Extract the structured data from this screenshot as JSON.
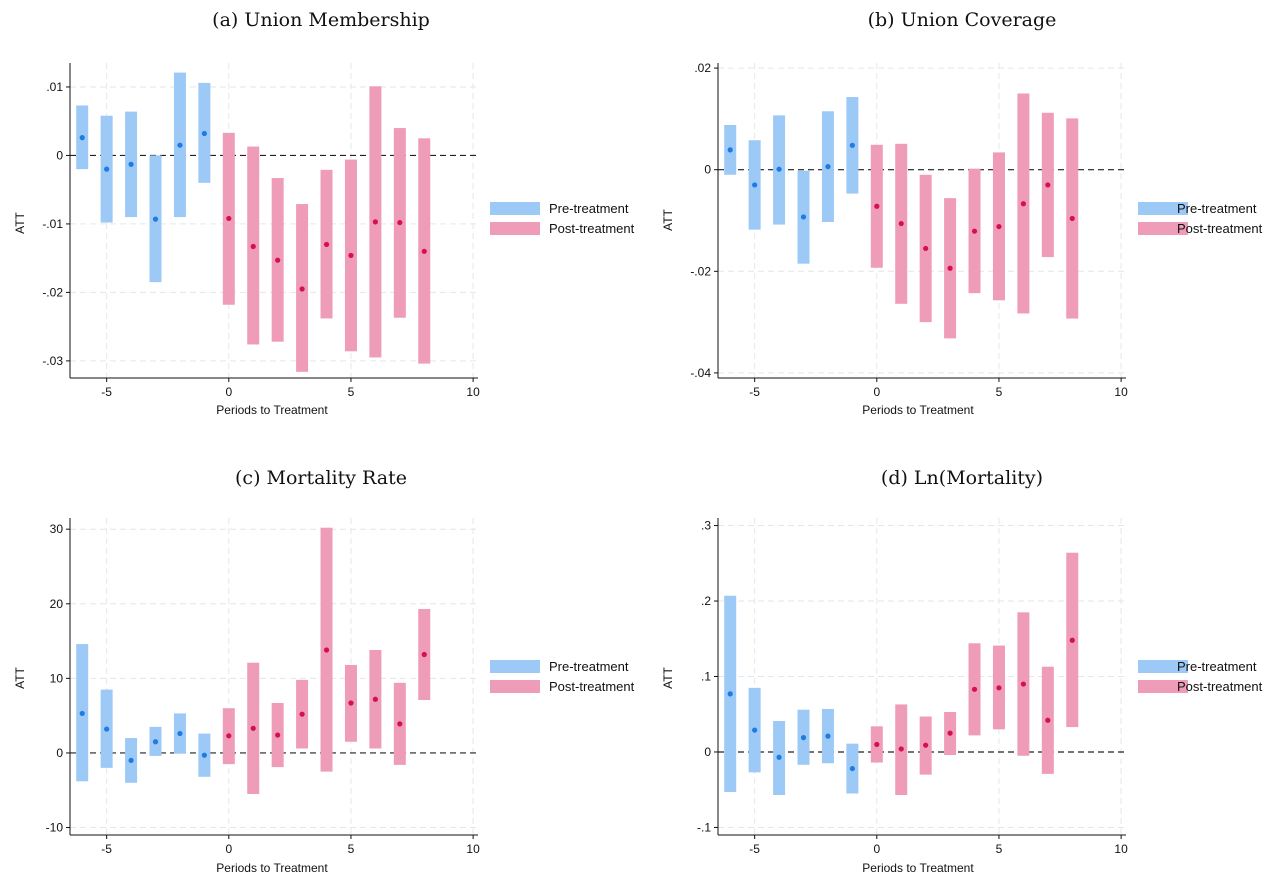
{
  "colors": {
    "pre": "#9dc9f7",
    "pre_point": "#1e7be0",
    "post": "#ee9cb8",
    "post_point": "#d4114e",
    "grid": "#e6e6e6",
    "axis": "#111111"
  },
  "chart_data": [
    {
      "type": "errorbar",
      "title": "(a) Union Membership",
      "xlabel": "Periods to Treatment",
      "ylabel": "ATT",
      "xlim": [
        -6.5,
        10.2
      ],
      "ylim": [
        -0.0325,
        0.0135
      ],
      "xticks": [
        -5,
        0,
        5,
        10
      ],
      "xtick_labels": [
        "-5",
        "0",
        "5",
        "10"
      ],
      "yticks": [
        0.01,
        0,
        -0.01,
        -0.02,
        -0.03
      ],
      "ytick_labels": [
        ".01",
        "0",
        "-.01",
        "-.02",
        "-.03"
      ],
      "legend": {
        "position": "right",
        "labels": [
          "Pre-treatment",
          "Post-treatment"
        ]
      },
      "series": [
        {
          "name": "Pre-treatment",
          "x": [
            -6,
            -5,
            -4,
            -3,
            -2,
            -1
          ],
          "y": [
            0.0026,
            -0.002,
            -0.0013,
            -0.0093,
            0.0015,
            0.0032
          ],
          "lower": [
            -0.002,
            -0.0098,
            -0.009,
            -0.0185,
            -0.009,
            -0.004
          ],
          "upper": [
            0.0073,
            0.0058,
            0.0064,
            0.0,
            0.0121,
            0.0106
          ]
        },
        {
          "name": "Post-treatment",
          "x": [
            0,
            1,
            2,
            3,
            4,
            5,
            6,
            7,
            8
          ],
          "y": [
            -0.0092,
            -0.0133,
            -0.0153,
            -0.0195,
            -0.013,
            -0.0146,
            -0.0097,
            -0.0098,
            -0.014
          ],
          "lower": [
            -0.0218,
            -0.0276,
            -0.0272,
            -0.0316,
            -0.0238,
            -0.0286,
            -0.0295,
            -0.0237,
            -0.0304
          ],
          "upper": [
            0.0033,
            0.0013,
            -0.0033,
            -0.0071,
            -0.0021,
            -0.0006,
            0.0101,
            0.004,
            0.0025
          ]
        }
      ]
    },
    {
      "type": "errorbar",
      "title": "(b) Union Coverage",
      "xlabel": "Periods to Treatment",
      "ylabel": "ATT",
      "xlim": [
        -6.5,
        10.2
      ],
      "ylim": [
        -0.041,
        0.021
      ],
      "xticks": [
        -5,
        0,
        5,
        10
      ],
      "xtick_labels": [
        "-5",
        "0",
        "5",
        "10"
      ],
      "yticks": [
        0.02,
        0,
        -0.02,
        -0.04
      ],
      "ytick_labels": [
        ".02",
        "0",
        "-.02",
        "-.04"
      ],
      "legend": {
        "position": "right",
        "labels": [
          "Pre-treatment",
          "Post-treatment"
        ]
      },
      "series": [
        {
          "name": "Pre-treatment",
          "x": [
            -6,
            -5,
            -4,
            -3,
            -2,
            -1
          ],
          "y": [
            0.0039,
            -0.003,
            0.0001,
            -0.0093,
            0.0006,
            0.0048
          ],
          "lower": [
            -0.001,
            -0.0118,
            -0.0108,
            -0.0185,
            -0.0103,
            -0.0047
          ],
          "upper": [
            0.0088,
            0.0058,
            0.0107,
            -0.0002,
            0.0115,
            0.0143
          ]
        },
        {
          "name": "Post-treatment",
          "x": [
            0,
            1,
            2,
            3,
            4,
            5,
            6,
            7,
            8
          ],
          "y": [
            -0.0072,
            -0.0106,
            -0.0155,
            -0.0194,
            -0.0121,
            -0.0112,
            -0.0067,
            -0.003,
            -0.0096
          ],
          "lower": [
            -0.0193,
            -0.0264,
            -0.03,
            -0.0332,
            -0.0243,
            -0.0257,
            -0.0283,
            -0.0172,
            -0.0293
          ],
          "upper": [
            0.0049,
            0.0051,
            -0.001,
            -0.0056,
            0.0002,
            0.0034,
            0.015,
            0.0112,
            0.0101
          ]
        }
      ]
    },
    {
      "type": "errorbar",
      "title": "(c) Mortality Rate",
      "xlabel": "Periods to Treatment",
      "ylabel": "ATT",
      "xlim": [
        -6.5,
        10.2
      ],
      "ylim": [
        -11,
        31.5
      ],
      "xticks": [
        -5,
        0,
        5,
        10
      ],
      "xtick_labels": [
        "-5",
        "0",
        "5",
        "10"
      ],
      "yticks": [
        30,
        20,
        10,
        0,
        -10
      ],
      "ytick_labels": [
        "30",
        "20",
        "10",
        "0",
        "-10"
      ],
      "legend": {
        "position": "right",
        "labels": [
          "Pre-treatment",
          "Post-treatment"
        ]
      },
      "series": [
        {
          "name": "Pre-treatment",
          "x": [
            -6,
            -5,
            -4,
            -3,
            -2,
            -1
          ],
          "y": [
            5.3,
            3.2,
            -1.0,
            1.5,
            2.6,
            -0.3
          ],
          "lower": [
            -3.8,
            -2.0,
            -4.0,
            -0.4,
            -0.1,
            -3.2
          ],
          "upper": [
            14.6,
            8.5,
            2.0,
            3.5,
            5.3,
            2.6
          ]
        },
        {
          "name": "Post-treatment",
          "x": [
            0,
            1,
            2,
            3,
            4,
            5,
            6,
            7,
            8
          ],
          "y": [
            2.3,
            3.3,
            2.4,
            5.2,
            13.8,
            6.7,
            7.2,
            3.9,
            13.2
          ],
          "lower": [
            -1.5,
            -5.5,
            -1.9,
            0.6,
            -2.5,
            1.5,
            0.6,
            -1.6,
            7.1
          ],
          "upper": [
            6.0,
            12.1,
            6.7,
            9.8,
            30.2,
            11.8,
            13.8,
            9.4,
            19.3
          ]
        }
      ]
    },
    {
      "type": "errorbar",
      "title": "(d) Ln(Mortality)",
      "xlabel": "Periods to Treatment",
      "ylabel": "ATT",
      "xlim": [
        -6.5,
        10.2
      ],
      "ylim": [
        -0.11,
        0.31
      ],
      "xticks": [
        -5,
        0,
        5,
        10
      ],
      "xtick_labels": [
        "-5",
        "0",
        "5",
        "10"
      ],
      "yticks": [
        0.3,
        0.2,
        0.1,
        0,
        -0.1
      ],
      "ytick_labels": [
        ".3",
        ".2",
        ".1",
        "0",
        "-.1"
      ],
      "legend": {
        "position": "right",
        "labels": [
          "Pre-treatment",
          "Post-treatment"
        ]
      },
      "series": [
        {
          "name": "Pre-treatment",
          "x": [
            -6,
            -5,
            -4,
            -3,
            -2,
            -1
          ],
          "y": [
            0.077,
            0.029,
            -0.007,
            0.019,
            0.021,
            -0.022
          ],
          "lower": [
            -0.053,
            -0.027,
            -0.057,
            -0.017,
            -0.015,
            -0.055
          ],
          "upper": [
            0.207,
            0.085,
            0.041,
            0.056,
            0.057,
            0.011
          ]
        },
        {
          "name": "Post-treatment",
          "x": [
            0,
            1,
            2,
            3,
            4,
            5,
            6,
            7,
            8
          ],
          "y": [
            0.01,
            0.004,
            0.009,
            0.025,
            0.083,
            0.085,
            0.09,
            0.042,
            0.148
          ],
          "lower": [
            -0.014,
            -0.057,
            -0.03,
            -0.004,
            0.022,
            0.03,
            -0.005,
            -0.029,
            0.033
          ],
          "upper": [
            0.034,
            0.063,
            0.047,
            0.053,
            0.144,
            0.141,
            0.185,
            0.113,
            0.264
          ]
        }
      ]
    }
  ]
}
